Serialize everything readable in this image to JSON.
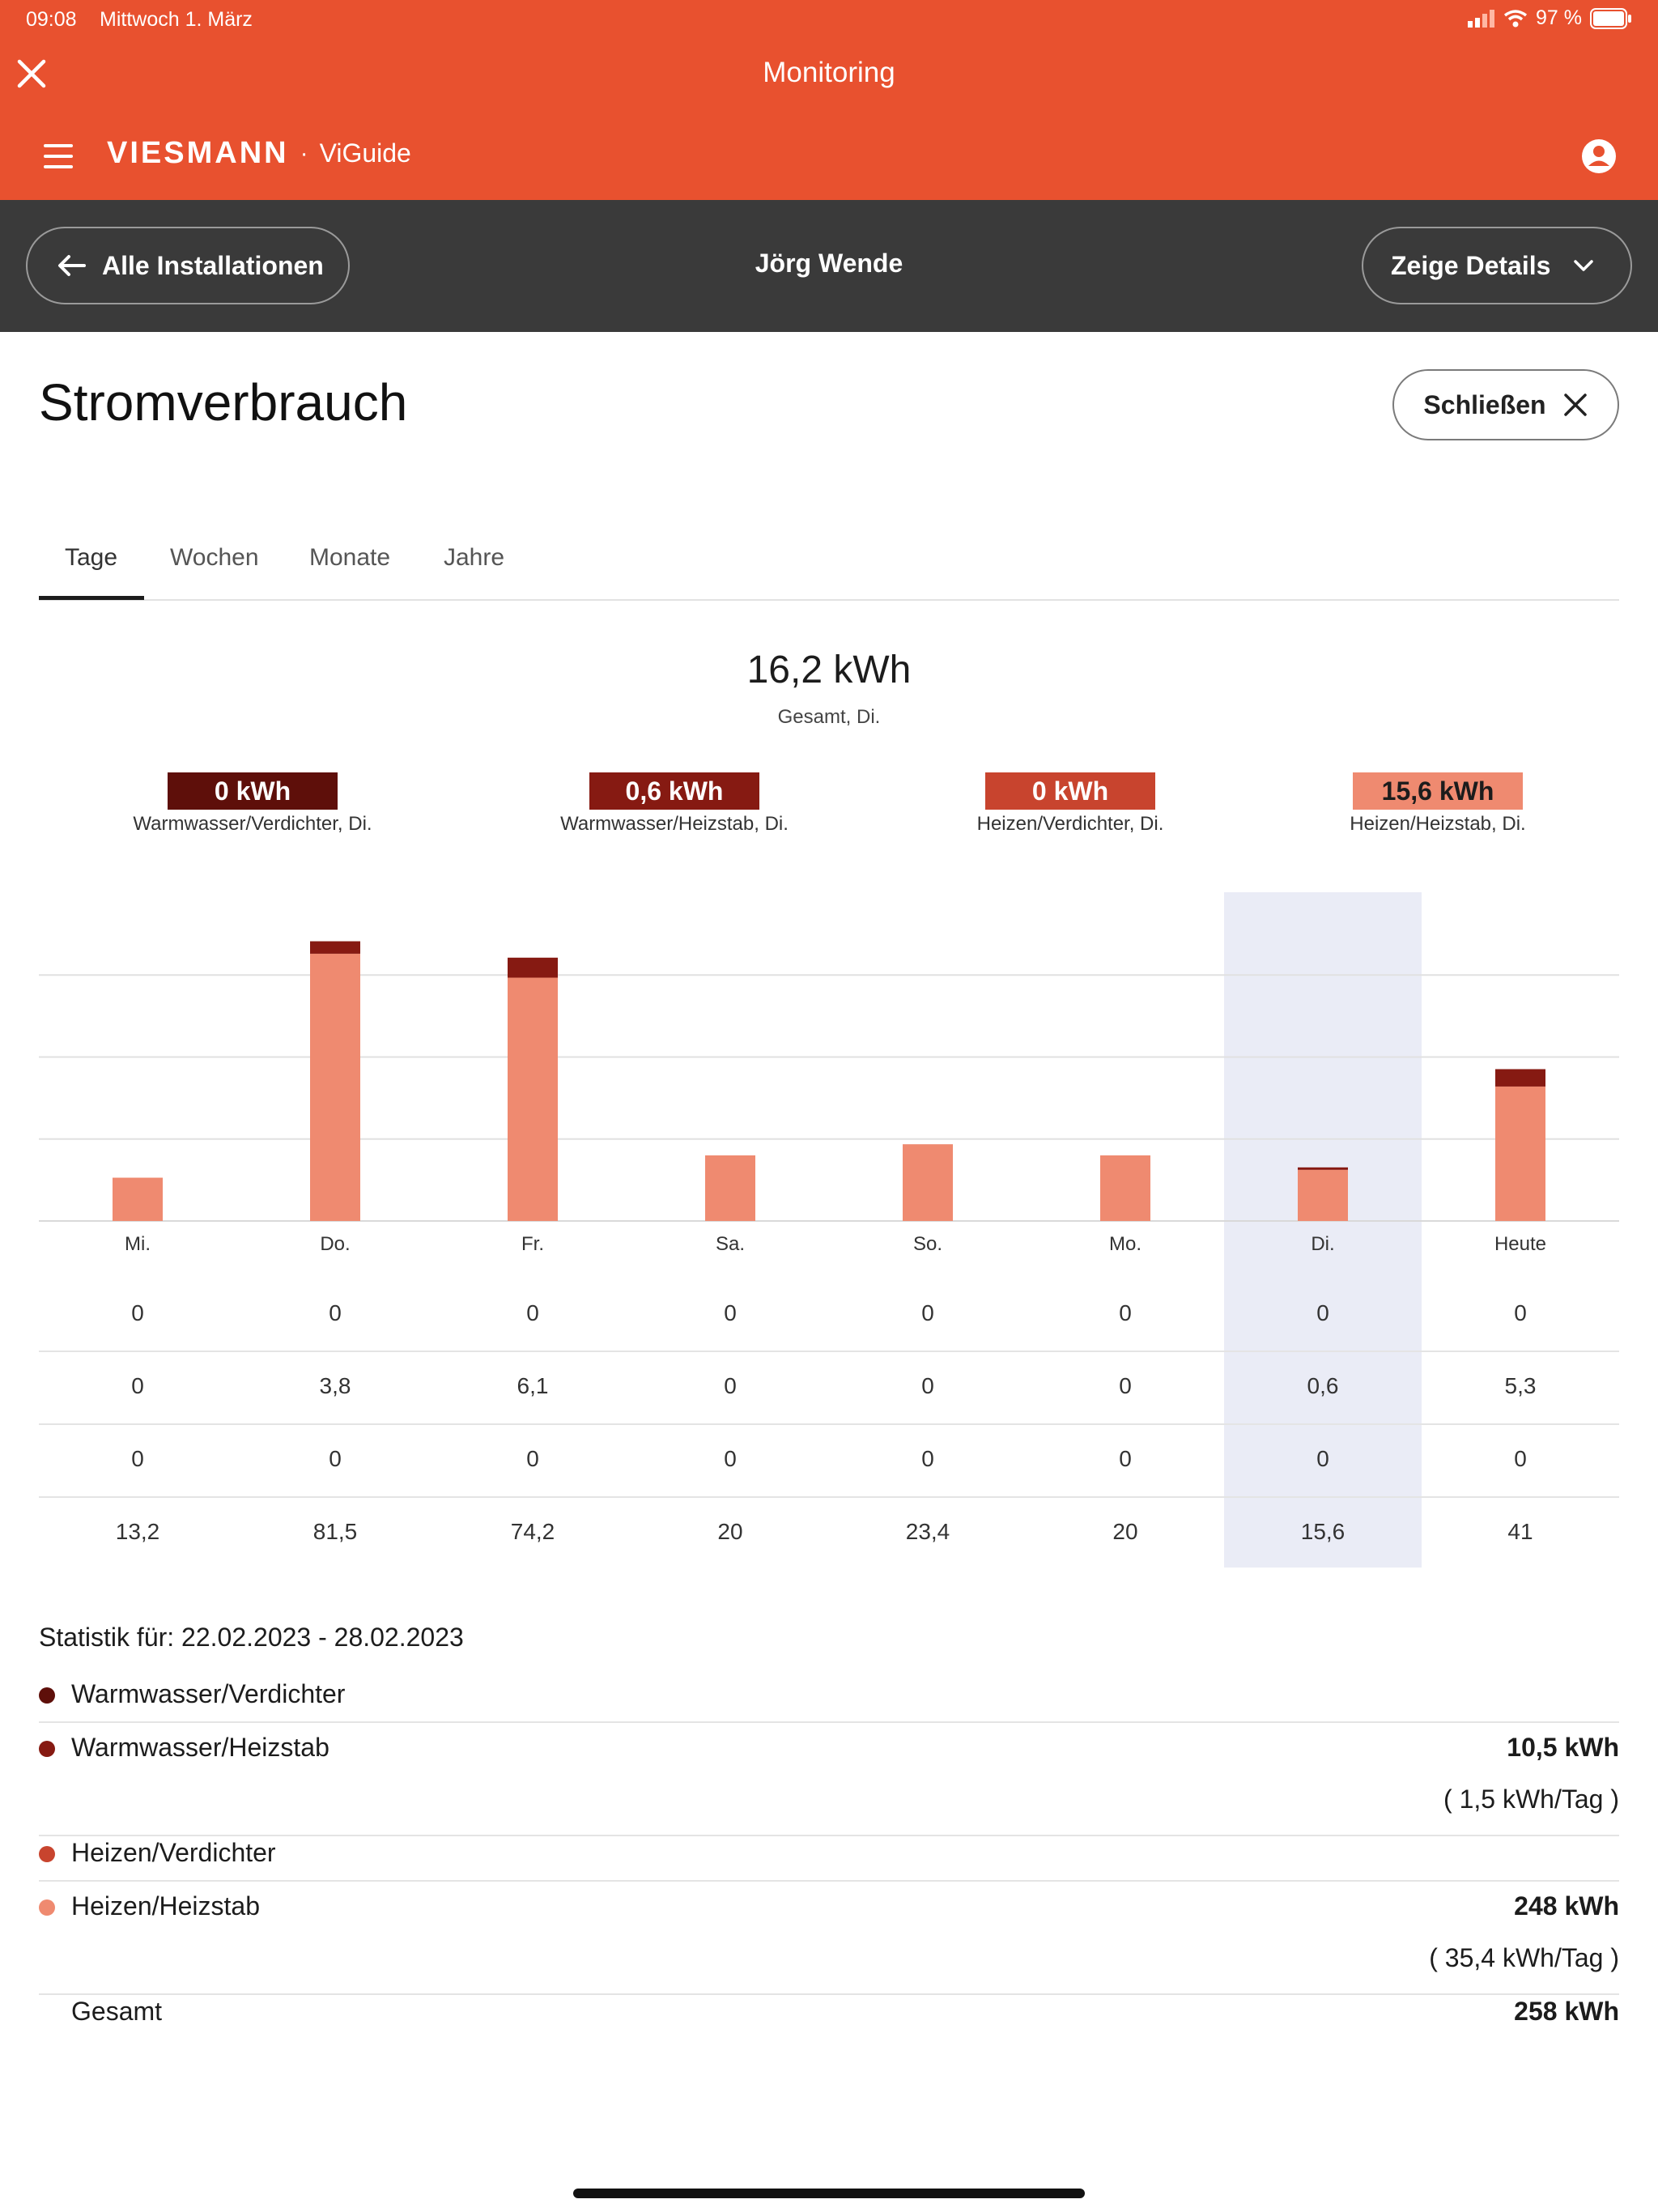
{
  "status": {
    "time": "09:08",
    "date": "Mittwoch 1. März",
    "battery": "97 %"
  },
  "header": {
    "title": "Monitoring",
    "brand": "VIESMANN",
    "brand_sep": "·",
    "product": "ViGuide"
  },
  "nav": {
    "back_label": "Alle Installationen",
    "user": "Jörg Wende",
    "details_label": "Zeige Details"
  },
  "page": {
    "title": "Stromverbrauch",
    "close_label": "Schließen"
  },
  "tabs": [
    {
      "label": "Tage"
    },
    {
      "label": "Wochen"
    },
    {
      "label": "Monate"
    },
    {
      "label": "Jahre"
    }
  ],
  "summary": {
    "total": "16,2 kWh",
    "total_caption": "Gesamt, Di.",
    "items": [
      {
        "value": "0 kWh",
        "caption": "Warmwasser/Verdichter, Di.",
        "color": "#5E0F0A"
      },
      {
        "value": "0,6 kWh",
        "caption": "Warmwasser/Heizstab, Di.",
        "color": "#861A12"
      },
      {
        "value": "0 kWh",
        "caption": "Heizen/Verdichter, Di.",
        "color": "#C8442E"
      },
      {
        "value": "15,6 kWh",
        "caption": "Heizen/Heizstab, Di.",
        "color": "#EF8A70"
      }
    ]
  },
  "chart_data": {
    "type": "bar",
    "categories": [
      "Mi.",
      "Do.",
      "Fr.",
      "Sa.",
      "So.",
      "Mo.",
      "Di.",
      "Heute"
    ],
    "selected_index": 6,
    "series": [
      {
        "name": "Warmwasser/Verdichter",
        "color": "#5E0F0A",
        "values": [
          0,
          0,
          0,
          0,
          0,
          0,
          0,
          0
        ]
      },
      {
        "name": "Warmwasser/Heizstab",
        "color": "#861A12",
        "values": [
          0,
          3.8,
          6.1,
          0,
          0,
          0,
          0.6,
          5.3
        ]
      },
      {
        "name": "Heizen/Verdichter",
        "color": "#C8442E",
        "values": [
          0,
          0,
          0,
          0,
          0,
          0,
          0,
          0
        ]
      },
      {
        "name": "Heizen/Heizstab",
        "color": "#EF8A70",
        "values": [
          13.2,
          81.5,
          74.2,
          20,
          23.4,
          20,
          15.6,
          41
        ]
      }
    ],
    "ylim": [
      0,
      100
    ],
    "grid": true
  },
  "table": {
    "rows": [
      [
        "0",
        "0",
        "0",
        "0",
        "0",
        "0",
        "0",
        "0"
      ],
      [
        "0",
        "3,8",
        "6,1",
        "0",
        "0",
        "0",
        "0,6",
        "5,3"
      ],
      [
        "0",
        "0",
        "0",
        "0",
        "0",
        "0",
        "0",
        "0"
      ],
      [
        "13,2",
        "81,5",
        "74,2",
        "20",
        "23,4",
        "20",
        "15,6",
        "41"
      ]
    ]
  },
  "stats": {
    "title": "Statistik für: 22.02.2023 - 28.02.2023",
    "rows": [
      {
        "label": "Warmwasser/Verdichter",
        "color": "#5E0F0A",
        "value": "",
        "per_day": ""
      },
      {
        "label": "Warmwasser/Heizstab",
        "color": "#861A12",
        "value": "10,5 kWh",
        "per_day": "( 1,5 kWh/Tag )"
      },
      {
        "label": "Heizen/Verdichter",
        "color": "#C8442E",
        "value": "",
        "per_day": ""
      },
      {
        "label": "Heizen/Heizstab",
        "color": "#EF8A70",
        "value": "248 kWh",
        "per_day": "( 35,4 kWh/Tag )"
      }
    ],
    "total_label": "Gesamt",
    "total_value": "258 kWh"
  }
}
